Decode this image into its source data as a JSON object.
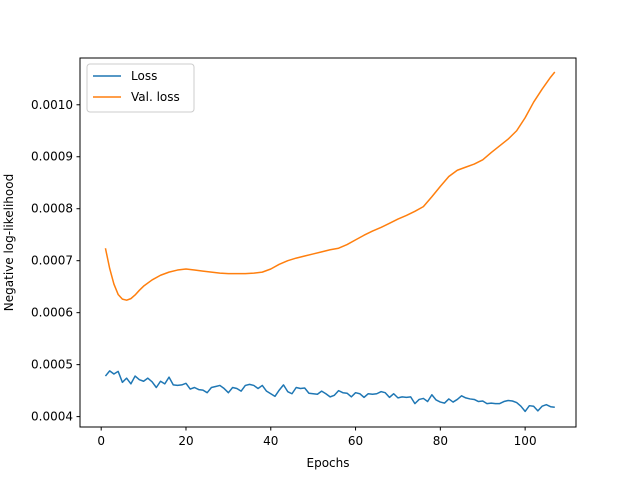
{
  "chart_data": {
    "type": "line",
    "xlabel": "Epochs",
    "ylabel": "Negative log-likelihood",
    "xlim": [
      -5,
      112
    ],
    "ylim": [
      0.00038,
      0.00109
    ],
    "xticks": [
      0,
      20,
      40,
      60,
      80,
      100
    ],
    "yticks": [
      0.0004,
      0.0005,
      0.0006,
      0.0007,
      0.0008,
      0.0009,
      0.001
    ],
    "ytick_labels": [
      "0.0004",
      "0.0005",
      "0.0006",
      "0.0007",
      "0.0008",
      "0.0009",
      "0.0010"
    ],
    "grid": false,
    "legend_position": "top-left",
    "series": [
      {
        "name": "Loss",
        "color": "#1f77b4",
        "x": [
          1,
          2,
          3,
          4,
          5,
          6,
          7,
          8,
          9,
          10,
          11,
          12,
          13,
          14,
          15,
          16,
          17,
          18,
          19,
          20,
          21,
          22,
          23,
          24,
          25,
          26,
          27,
          28,
          29,
          30,
          31,
          32,
          33,
          34,
          35,
          36,
          37,
          38,
          39,
          40,
          41,
          42,
          43,
          44,
          45,
          46,
          47,
          48,
          49,
          50,
          51,
          52,
          53,
          54,
          55,
          56,
          57,
          58,
          59,
          60,
          61,
          62,
          63,
          64,
          65,
          66,
          67,
          68,
          69,
          70,
          71,
          72,
          73,
          74,
          75,
          76,
          77,
          78,
          79,
          80,
          81,
          82,
          83,
          84,
          85,
          86,
          87,
          88,
          89,
          90,
          91,
          92,
          93,
          94,
          95,
          96,
          97,
          98,
          99,
          100,
          101,
          102,
          103,
          104,
          105,
          106,
          107
        ],
        "y": [
          0.000478,
          0.000488,
          0.000482,
          0.000487,
          0.000466,
          0.000474,
          0.000463,
          0.000478,
          0.000471,
          0.000468,
          0.000474,
          0.000467,
          0.000456,
          0.000468,
          0.000463,
          0.000476,
          0.000461,
          0.00046,
          0.000461,
          0.000464,
          0.000453,
          0.000456,
          0.000452,
          0.000451,
          0.000446,
          0.000456,
          0.000458,
          0.00046,
          0.000454,
          0.000446,
          0.000456,
          0.000454,
          0.000449,
          0.00046,
          0.000462,
          0.00046,
          0.000454,
          0.00046,
          0.000449,
          0.000444,
          0.000439,
          0.000451,
          0.000461,
          0.000448,
          0.000444,
          0.000456,
          0.000454,
          0.000455,
          0.000445,
          0.000444,
          0.000443,
          0.000449,
          0.000444,
          0.000438,
          0.000441,
          0.00045,
          0.000446,
          0.000445,
          0.000438,
          0.000446,
          0.000444,
          0.000437,
          0.000444,
          0.000443,
          0.000444,
          0.000448,
          0.000446,
          0.000437,
          0.000444,
          0.000436,
          0.000438,
          0.000437,
          0.000438,
          0.000425,
          0.000433,
          0.000435,
          0.000429,
          0.000442,
          0.000432,
          0.000428,
          0.000426,
          0.000434,
          0.000428,
          0.000433,
          0.00044,
          0.000436,
          0.000434,
          0.000433,
          0.000429,
          0.00043,
          0.000425,
          0.000426,
          0.000425,
          0.000425,
          0.000429,
          0.000431,
          0.00043,
          0.000427,
          0.00042,
          0.00041,
          0.000421,
          0.00042,
          0.000411,
          0.00042,
          0.000423,
          0.000419,
          0.000418
        ]
      },
      {
        "name": "Val. loss",
        "color": "#ff7f0e",
        "x": [
          1,
          2,
          3,
          4,
          5,
          6,
          7,
          8,
          9,
          10,
          12,
          14,
          16,
          18,
          20,
          22,
          24,
          26,
          28,
          30,
          32,
          34,
          36,
          38,
          40,
          42,
          44,
          46,
          48,
          50,
          52,
          54,
          56,
          58,
          60,
          62,
          64,
          66,
          68,
          70,
          72,
          74,
          76,
          78,
          80,
          82,
          84,
          86,
          88,
          90,
          92,
          94,
          96,
          98,
          100,
          102,
          104,
          106,
          107
        ],
        "y": [
          0.000724,
          0.000685,
          0.000655,
          0.000635,
          0.000626,
          0.000624,
          0.000627,
          0.000634,
          0.000643,
          0.000651,
          0.000663,
          0.000672,
          0.000678,
          0.000682,
          0.000684,
          0.000682,
          0.00068,
          0.000678,
          0.000676,
          0.000675,
          0.000675,
          0.000675,
          0.000676,
          0.000678,
          0.000684,
          0.000693,
          0.0007,
          0.000705,
          0.000709,
          0.000713,
          0.000717,
          0.000721,
          0.000724,
          0.000731,
          0.00074,
          0.000749,
          0.000757,
          0.000764,
          0.000772,
          0.00078,
          0.000787,
          0.000795,
          0.000804,
          0.000823,
          0.000843,
          0.000862,
          0.000874,
          0.00088,
          0.000886,
          0.000894,
          0.000908,
          0.000921,
          0.000934,
          0.00095,
          0.000975,
          0.001005,
          0.00103,
          0.001053,
          0.001063
        ]
      }
    ]
  }
}
